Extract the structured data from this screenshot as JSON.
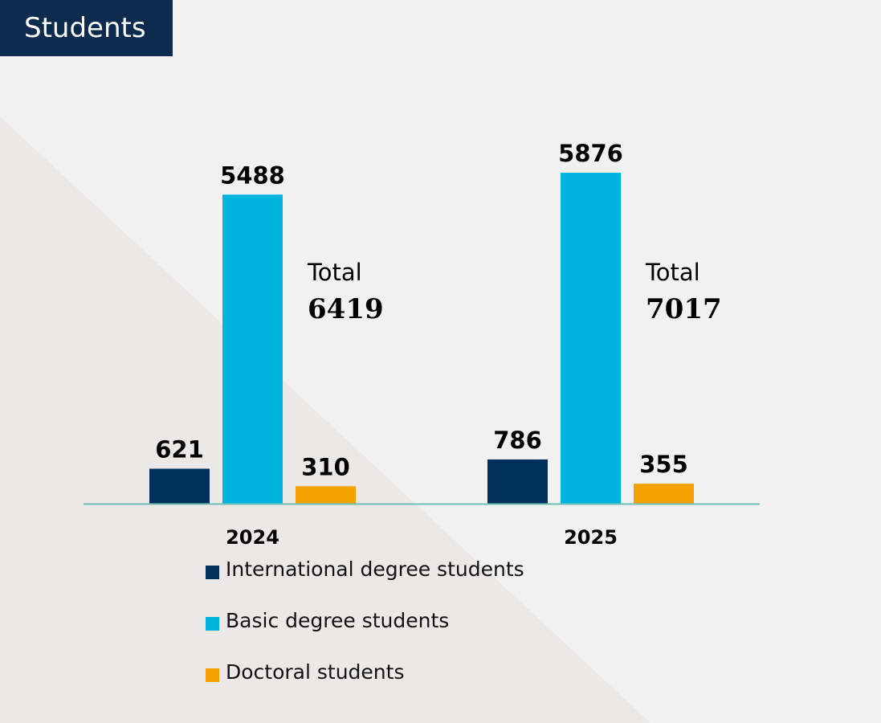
{
  "title": "Students",
  "colors": {
    "background": "#f1f1f1",
    "triangle": "#ece8e8",
    "banner": "#0d2a4f",
    "baseline": "#6fbfb3"
  },
  "legend": [
    {
      "label": "International degree students",
      "color": "#00305c"
    },
    {
      "label": "Basic degree students",
      "color": "#00b4e0"
    },
    {
      "label": "Doctoral students",
      "color": "#f5a100"
    }
  ],
  "chart_data": {
    "type": "bar",
    "categories": [
      "2024",
      "2025"
    ],
    "series": [
      {
        "name": "International degree students",
        "values": [
          621,
          786
        ],
        "color": "#00305c"
      },
      {
        "name": "Basic degree students",
        "values": [
          5488,
          5876
        ],
        "color": "#00b4e0"
      },
      {
        "name": "Doctoral students",
        "values": [
          310,
          355
        ],
        "color": "#f5a100"
      }
    ],
    "totals": [
      {
        "label": "Total",
        "value": "6419"
      },
      {
        "label": "Total",
        "value": "7017"
      }
    ],
    "title": "Students",
    "xlabel": "",
    "ylabel": "",
    "grid": false,
    "legend_position": "bottom"
  }
}
